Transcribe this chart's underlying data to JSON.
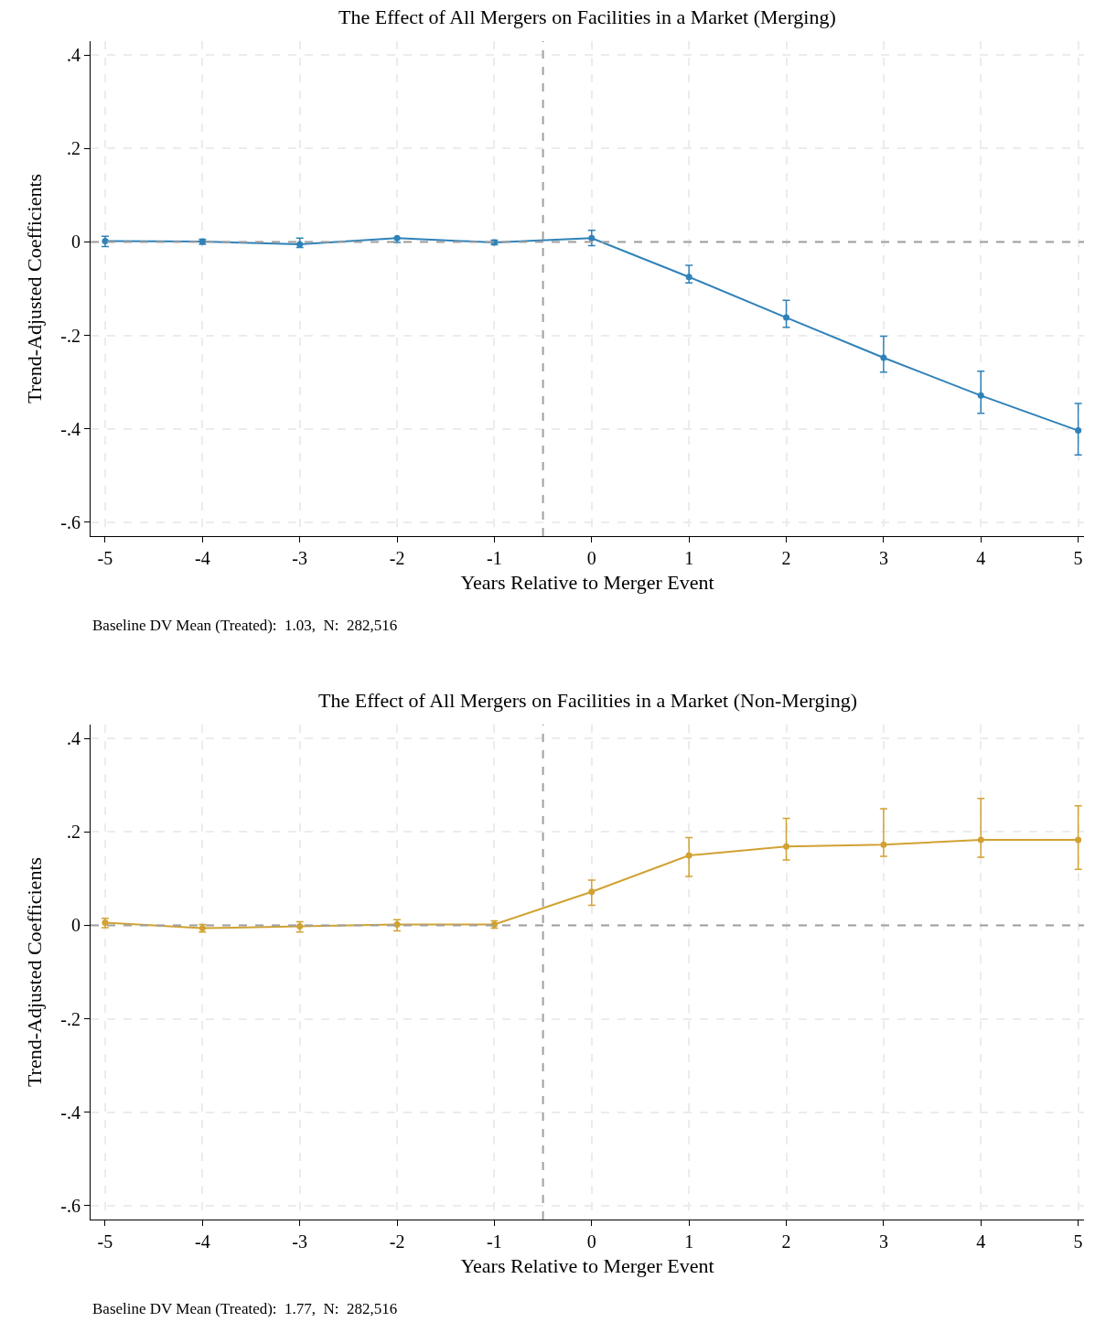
{
  "chart_data": [
    {
      "type": "line",
      "title": "The Effect of All Mergers on Facilities in a Market (Merging)",
      "xlabel": "Years Relative to Merger Event",
      "ylabel": "Trend-Adjusted Coefficients",
      "annotations": [
        "Baseline DV Mean (Treated):  1.03,  N:  282,516"
      ],
      "x": [
        -5,
        -4,
        -3,
        -2,
        -1,
        0,
        1,
        2,
        3,
        4,
        5
      ],
      "series": [
        {
          "color": "#2f82b8",
          "values": [
            0.002,
            0.001,
            -0.005,
            0.008,
            -0.001,
            0.008,
            -0.075,
            -0.162,
            -0.248,
            -0.329,
            -0.404
          ],
          "errors": [
            [
              -0.01,
              0.012
            ],
            [
              -0.005,
              0.006
            ],
            [
              -0.012,
              0.008
            ],
            [
              -0.001,
              0.008
            ],
            [
              -0.006,
              0.004
            ],
            [
              -0.008,
              0.025
            ],
            [
              -0.088,
              -0.05
            ],
            [
              -0.183,
              -0.125
            ],
            [
              -0.279,
              -0.202
            ],
            [
              -0.367,
              -0.277
            ],
            [
              -0.456,
              -0.346
            ]
          ]
        }
      ],
      "xlim": [
        -5.15,
        5.06
      ],
      "xticks": [
        -5,
        -4,
        -3,
        -2,
        -1,
        0,
        1,
        2,
        3,
        4,
        5
      ],
      "ylim": [
        -0.63,
        0.43
      ],
      "yticks": [
        {
          "value": -0.6,
          "label": "-.6"
        },
        {
          "value": -0.4,
          "label": "-.4"
        },
        {
          "value": -0.2,
          "label": "-.2"
        },
        0,
        {
          "value": 0.2,
          "label": ".2"
        },
        {
          "value": 0.4,
          "label": ".4"
        }
      ],
      "ref_lines": [
        {
          "axis": "y",
          "value": 0,
          "color": "#a0a0a0",
          "line_style": "dashed"
        },
        {
          "axis": "x",
          "value": -0.5,
          "color": "#a0a0a0",
          "line_style": "dashed"
        }
      ],
      "grid": true,
      "marker": "circle",
      "line_style": "solid"
    },
    {
      "type": "line",
      "title": "The Effect of All Mergers on Facilities in a Market (Non-Merging)",
      "xlabel": "Years Relative to Merger Event",
      "ylabel": "Trend-Adjusted Coefficients",
      "annotations": [
        "Baseline DV Mean (Treated):  1.77,  N:  282,516"
      ],
      "x": [
        -5,
        -4,
        -3,
        -2,
        -1,
        0,
        1,
        2,
        3,
        4,
        5
      ],
      "series": [
        {
          "color": "#d1a232",
          "values": [
            0.006,
            -0.006,
            -0.002,
            0.002,
            0.002,
            0.072,
            0.15,
            0.169,
            0.173,
            0.183,
            0.183
          ],
          "errors": [
            [
              -0.005,
              0.015
            ],
            [
              -0.014,
              0.002
            ],
            [
              -0.014,
              0.008
            ],
            [
              -0.012,
              0.012
            ],
            [
              -0.006,
              0.01
            ],
            [
              0.043,
              0.097
            ],
            [
              0.105,
              0.188
            ],
            [
              0.14,
              0.229
            ],
            [
              0.148,
              0.25
            ],
            [
              0.146,
              0.272
            ],
            [
              0.12,
              0.256
            ]
          ]
        }
      ],
      "xlim": [
        -5.15,
        5.06
      ],
      "xticks": [
        -5,
        -4,
        -3,
        -2,
        -1,
        0,
        1,
        2,
        3,
        4,
        5
      ],
      "ylim": [
        -0.63,
        0.43
      ],
      "yticks": [
        {
          "value": -0.6,
          "label": "-.6"
        },
        {
          "value": -0.4,
          "label": "-.4"
        },
        {
          "value": -0.2,
          "label": "-.2"
        },
        0,
        {
          "value": 0.2,
          "label": ".2"
        },
        {
          "value": 0.4,
          "label": ".4"
        }
      ],
      "ref_lines": [
        {
          "axis": "y",
          "value": 0,
          "color": "#a0a0a0",
          "line_style": "dashed"
        },
        {
          "axis": "x",
          "value": -0.5,
          "color": "#a0a0a0",
          "line_style": "dashed"
        }
      ],
      "grid": true,
      "marker": "circle",
      "line_style": "solid"
    }
  ]
}
